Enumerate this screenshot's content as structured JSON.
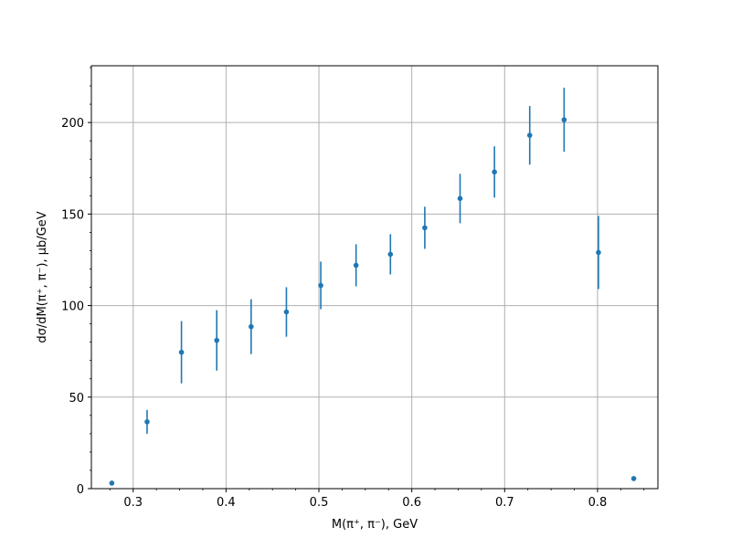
{
  "chart_data": {
    "type": "scatter",
    "title": "",
    "xlabel": "M(π⁺, π⁻), GeV",
    "ylabel": "dσ/dM(π⁺, π⁻), μb/GeV",
    "xlim": [
      0.255,
      0.865
    ],
    "ylim": [
      0,
      231
    ],
    "xticks": [
      0.3,
      0.4,
      0.5,
      0.6,
      0.7,
      0.8
    ],
    "xtick_labels": [
      "0.3",
      "0.4",
      "0.5",
      "0.6",
      "0.7",
      "0.8"
    ],
    "yticks": [
      0,
      50,
      100,
      150,
      200
    ],
    "ytick_labels": [
      "0",
      "50",
      "100",
      "150",
      "200"
    ],
    "grid": true,
    "color": "#1f77b4",
    "series": [
      {
        "points": [
          {
            "x": 0.277,
            "y": 3.0,
            "err": 0
          },
          {
            "x": 0.315,
            "y": 36.5,
            "err": 6.5
          },
          {
            "x": 0.352,
            "y": 74.5,
            "err": 17.0
          },
          {
            "x": 0.39,
            "y": 81.0,
            "err": 16.5
          },
          {
            "x": 0.427,
            "y": 88.5,
            "err": 15.0
          },
          {
            "x": 0.465,
            "y": 96.5,
            "err": 13.5
          },
          {
            "x": 0.502,
            "y": 111.0,
            "err": 13.0
          },
          {
            "x": 0.54,
            "y": 122.0,
            "err": 11.5
          },
          {
            "x": 0.577,
            "y": 128.0,
            "err": 11.0
          },
          {
            "x": 0.614,
            "y": 142.5,
            "err": 11.5
          },
          {
            "x": 0.652,
            "y": 158.5,
            "err": 13.5
          },
          {
            "x": 0.689,
            "y": 173.0,
            "err": 14.0
          },
          {
            "x": 0.727,
            "y": 193.0,
            "err": 16.0
          },
          {
            "x": 0.764,
            "y": 201.5,
            "err": 17.5
          },
          {
            "x": 0.801,
            "y": 129.0,
            "err": 20.0
          },
          {
            "x": 0.839,
            "y": 5.5,
            "err": 0
          }
        ]
      }
    ]
  }
}
